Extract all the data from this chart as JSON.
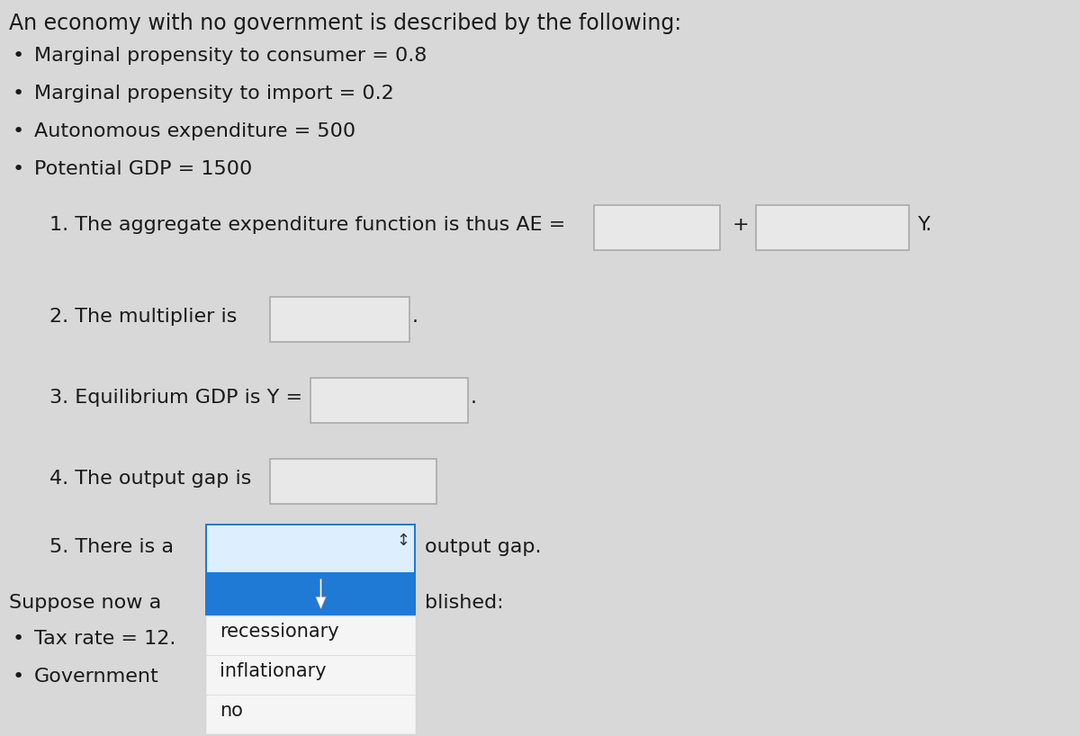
{
  "bg_color": "#d8d8d8",
  "text_color": "#1a1a1a",
  "title_line": "An economy with no government is described by the following:",
  "bullets": [
    "Marginal propensity to consumer = 0.8",
    "Marginal propensity to import = 0.2",
    "Autonomous expenditure = 500",
    "Potential GDP = 1500"
  ],
  "q1_text": "1. The aggregate expenditure function is thus AE =",
  "q1_plus": "+",
  "q1_end": "Y.",
  "q2_text": "2. The multiplier is",
  "q2_end": ".",
  "q3_text": "3. Equilibrium GDP is Y =",
  "q3_end": ".",
  "q4_text": "4. The output gap is",
  "q5_text": "5. There is a",
  "q5_end": "output gap.",
  "suppose_text": "Suppose now a",
  "suppose_end": "blished:",
  "bullet_tax": "Tax rate = 12.",
  "bullet_gov": "Government",
  "dropdown_items": [
    "recessionary",
    "inflationary",
    "no"
  ],
  "dropdown_bg_top": "#d0e4f7",
  "dropdown_border_blue": "#1e7ad4",
  "dropdown_selected_bg": "#1e7ad4",
  "dropdown_text_color": "#1a1a1a",
  "dropdown_selected_text": "#1a1a1a",
  "dropdown_option_bg": "#f5f5f5",
  "input_box_bg": "#e8e8e8",
  "input_border_color": "#aaaaaa",
  "font_size_title": 17,
  "font_size_body": 16,
  "font_size_small": 15,
  "cursor_arrow": true,
  "arrow_symbol": "↕"
}
